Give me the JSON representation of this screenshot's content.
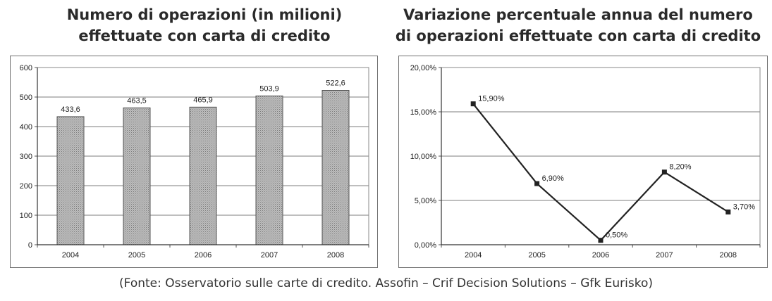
{
  "titles": {
    "left": [
      "Numero di operazioni (in milioni)",
      "effettuate con carta di credito"
    ],
    "right": [
      "Variazione percentuale annua del numero",
      "di operazioni effettuate con carta di credito"
    ]
  },
  "source": "(Fonte: Osservatorio sulle carte di credito. Assofin – Crif Decision Solutions – Gfk Eurisko)",
  "chart_data": [
    {
      "type": "bar",
      "categories": [
        "2004",
        "2005",
        "2006",
        "2007",
        "2008"
      ],
      "values": [
        433.6,
        463.5,
        465.9,
        503.9,
        522.6
      ],
      "value_labels": [
        "433,6",
        "463,5",
        "465,9",
        "503,9",
        "522,6"
      ],
      "ylim": [
        0,
        600
      ],
      "yticks": [
        "0",
        "100",
        "200",
        "300",
        "400",
        "500",
        "600"
      ],
      "grid": true,
      "legend": "none",
      "bar_color": "#b8b8b8"
    },
    {
      "type": "line",
      "categories": [
        "2004",
        "2005",
        "2006",
        "2007",
        "2008"
      ],
      "values": [
        15.9,
        6.9,
        0.5,
        8.2,
        3.7
      ],
      "value_labels": [
        "15,90%",
        "6,90%",
        "0,50%",
        "8,20%",
        "3,70%"
      ],
      "ylim": [
        0,
        20
      ],
      "yticks": [
        "0,00%",
        "5,00%",
        "10,00%",
        "15,00%",
        "20,00%"
      ],
      "grid": true,
      "legend": "none",
      "line_color": "#222222"
    }
  ]
}
